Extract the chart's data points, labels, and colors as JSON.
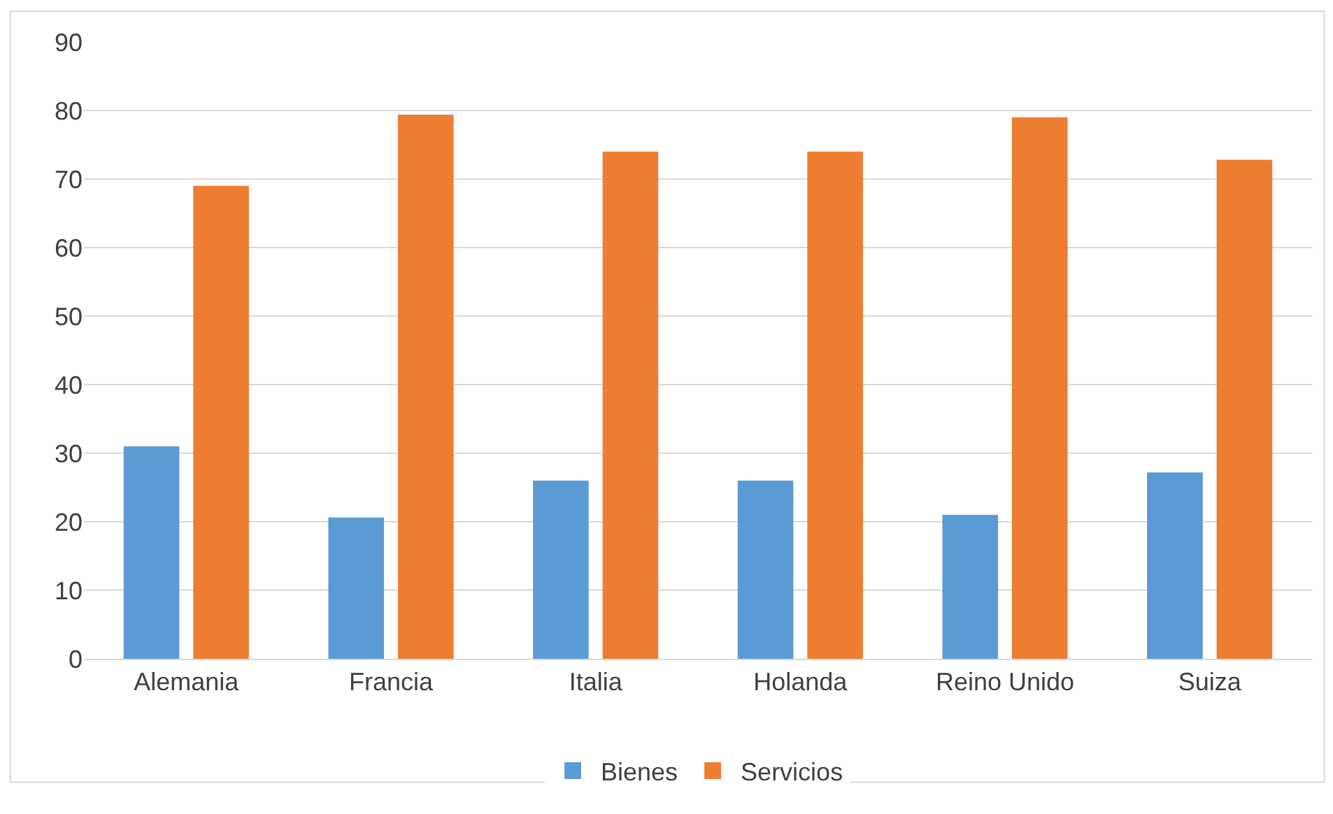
{
  "chart_data": {
    "type": "bar",
    "categories": [
      "Alemania",
      "Francia",
      "Italia",
      "Holanda",
      "Reino Unido",
      "Suiza"
    ],
    "series": [
      {
        "name": "Bienes",
        "color": "#5b9bd5",
        "values": [
          31,
          20.6,
          26,
          26,
          21,
          27.2
        ]
      },
      {
        "name": "Servicios",
        "color": "#ed7d31",
        "values": [
          69,
          79.4,
          74,
          74,
          79,
          72.8
        ]
      }
    ],
    "ylim": [
      0,
      90
    ],
    "yticks": [
      0,
      10,
      20,
      30,
      40,
      50,
      60,
      70,
      80,
      90
    ],
    "grid": "y",
    "legend": "bottom"
  }
}
